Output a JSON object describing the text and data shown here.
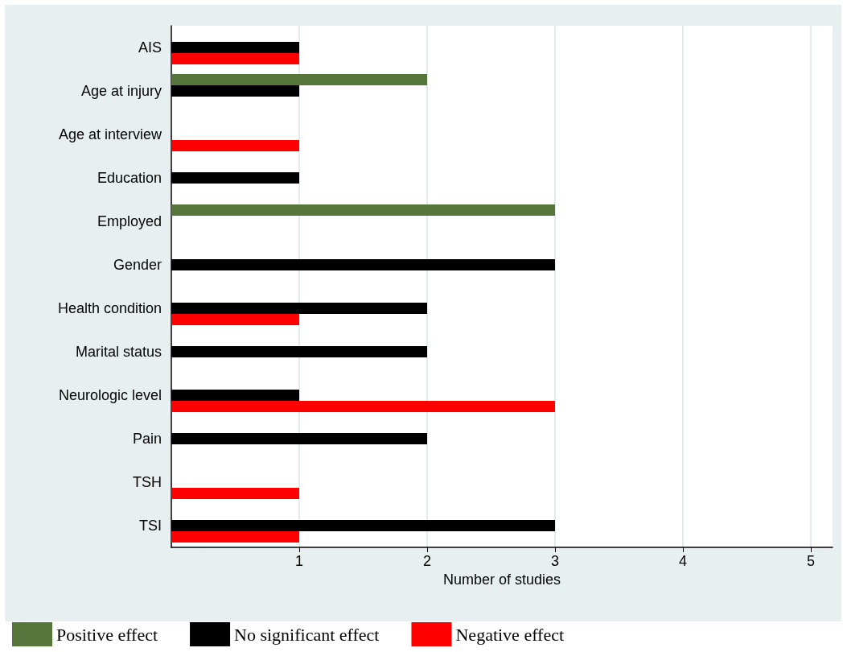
{
  "chart_data": {
    "type": "bar",
    "orientation": "horizontal",
    "xlabel": "Number of studies",
    "categories": [
      "AIS",
      "Age at injury",
      "Age at interview",
      "Education",
      "Employed",
      "Gender",
      "Health condition",
      "Marital status",
      "Neurologic level",
      "Pain",
      "TSH",
      "TSI"
    ],
    "series": [
      {
        "name": "Positive effect",
        "color": "#55753a",
        "values": [
          null,
          2,
          null,
          null,
          3,
          null,
          null,
          null,
          null,
          null,
          null,
          null
        ]
      },
      {
        "name": "No significant effect",
        "color": "#000000",
        "values": [
          1,
          1,
          null,
          1,
          null,
          3,
          2,
          2,
          1,
          2,
          null,
          3
        ]
      },
      {
        "name": "Negative effect",
        "color": "#ff0000",
        "values": [
          1,
          null,
          1,
          null,
          null,
          null,
          1,
          null,
          3,
          null,
          1,
          1
        ]
      }
    ],
    "xlim": [
      0,
      5.17
    ],
    "xticks": [
      1,
      2,
      3,
      4,
      5
    ],
    "grid": "x",
    "legend": "bottom"
  }
}
